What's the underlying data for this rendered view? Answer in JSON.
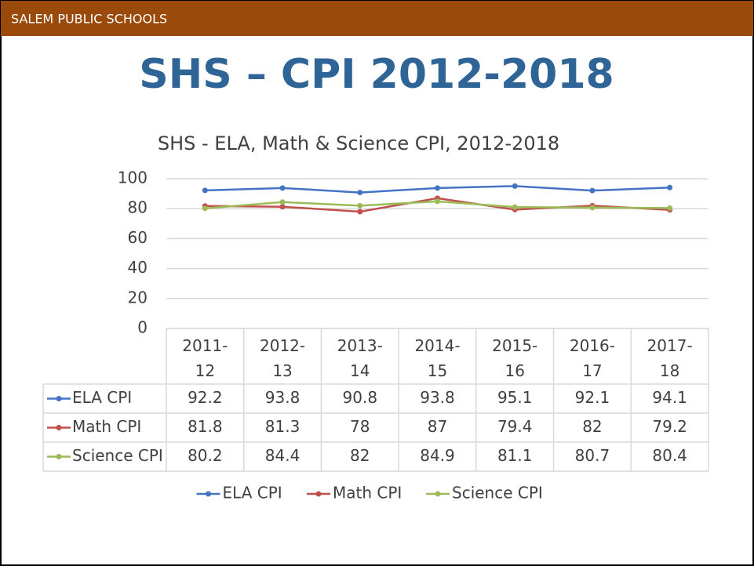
{
  "header": "SALEM PUBLIC SCHOOLS",
  "title": "SHS – CPI 2012-2018",
  "chart_data": {
    "type": "line",
    "title": "SHS - ELA, Math & Science CPI, 2012-2018",
    "categories": [
      "2011-12",
      "2012-13",
      "2013-14",
      "2014-15",
      "2015-16",
      "2016-17",
      "2017-18"
    ],
    "series": [
      {
        "name": "ELA CPI",
        "color": "#4472c4",
        "values": [
          92.2,
          93.8,
          90.8,
          93.8,
          95.1,
          92.1,
          94.1
        ]
      },
      {
        "name": "Math CPI",
        "color": "#c0504d",
        "values": [
          81.8,
          81.3,
          78,
          87,
          79.4,
          82,
          79.2
        ]
      },
      {
        "name": "Science CPI",
        "color": "#9bbb59",
        "values": [
          80.2,
          84.4,
          82,
          84.9,
          81.1,
          80.7,
          80.4
        ]
      }
    ],
    "ylim": [
      0,
      100
    ],
    "yticks": [
      0,
      20,
      40,
      60,
      80,
      100
    ],
    "grid": true,
    "legend": "bottom",
    "data_table": true
  }
}
